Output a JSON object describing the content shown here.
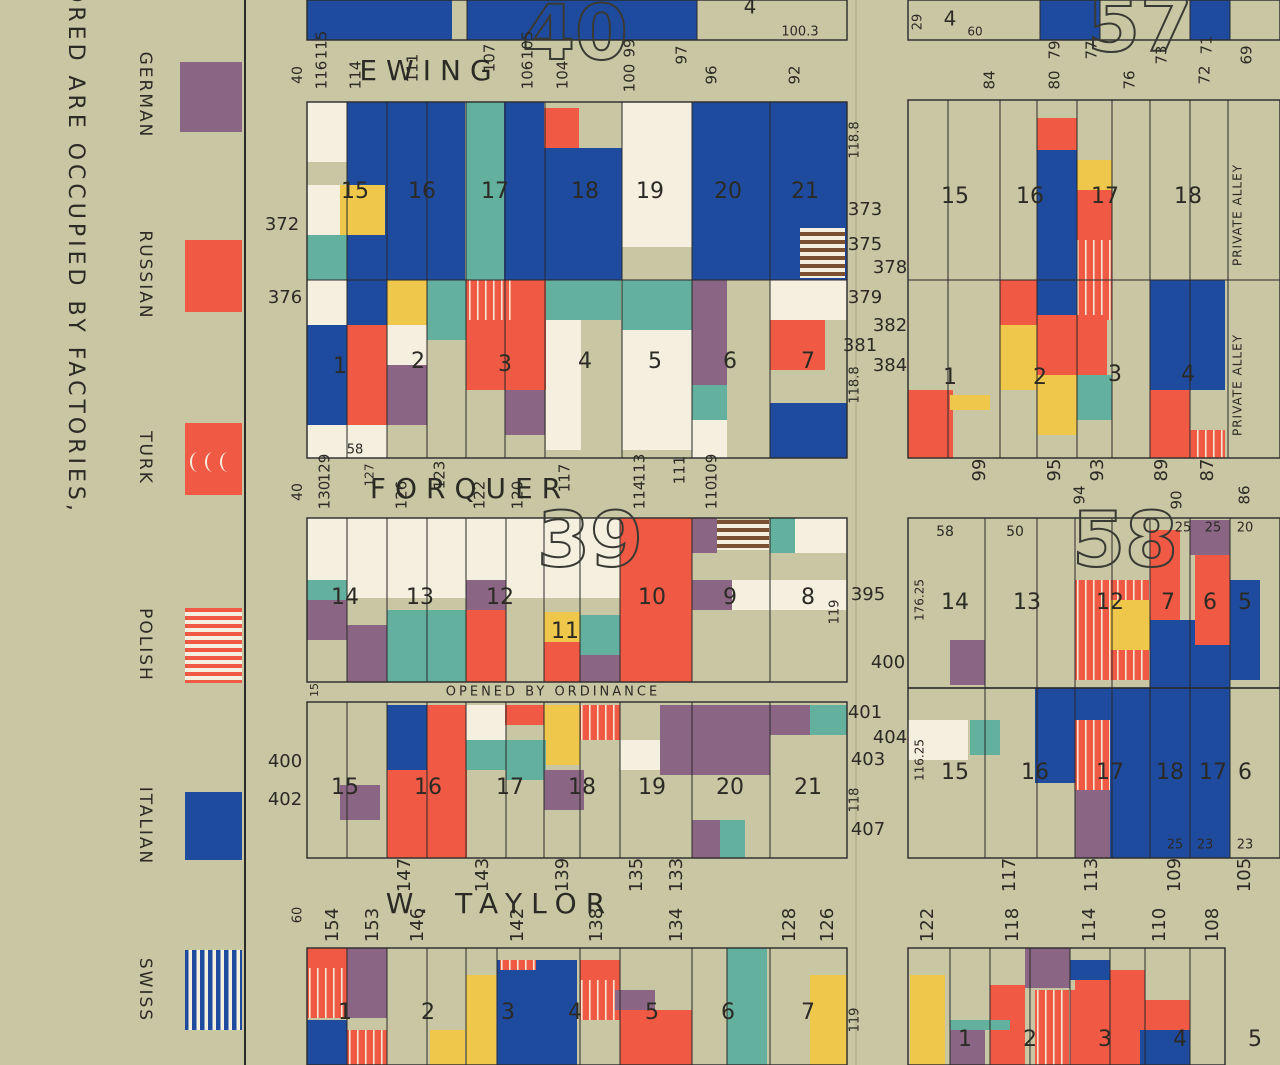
{
  "legend": {
    "items": [
      {
        "label": "GERMAN"
      },
      {
        "label": "RUSSIAN"
      },
      {
        "label": "TURK"
      },
      {
        "label": "POLISH"
      },
      {
        "label": "ITALIAN"
      },
      {
        "label": "SWISS"
      }
    ],
    "note": "LOTS UNCOLORED ARE OCCUPIED BY FACTORIES,"
  },
  "streets": [
    "EWING",
    "FORQUER",
    "W. TAYLOR"
  ],
  "block_numbers": [
    "40",
    "57",
    "39",
    "58"
  ],
  "opening_note": "OPENED BY ORDINANCE",
  "alley_labels": [
    "PRIVATE ALLEY",
    "PRIVATE ALLEY"
  ],
  "lot_labels": [
    "4",
    "100.3",
    "29",
    "4",
    "60",
    "40",
    "116",
    "115",
    "114",
    "111",
    "107",
    "106",
    "105",
    "104",
    "100",
    "99",
    "97",
    "96",
    "92",
    "84",
    "80",
    "79",
    "77",
    "76",
    "73",
    "72",
    "71",
    "69",
    "15",
    "16",
    "17",
    "18",
    "19",
    "20",
    "21",
    "15",
    "16",
    "17",
    "18",
    "1",
    "2",
    "3",
    "4",
    "5",
    "6",
    "7",
    "1",
    "2",
    "3",
    "4",
    "372",
    "376",
    "373",
    "375",
    "378",
    "379",
    "382",
    "381",
    "384",
    "118.8",
    "118.8",
    "58",
    "99",
    "95",
    "93",
    "89",
    "87",
    "40",
    "130",
    "129",
    "127",
    "126",
    "123",
    "122",
    "120",
    "117",
    "114",
    "113",
    "111",
    "110",
    "109",
    "94",
    "90",
    "86",
    "14",
    "13",
    "12",
    "11",
    "10",
    "9",
    "8",
    "395",
    "119",
    "58",
    "50",
    "25",
    "25",
    "20",
    "14",
    "13",
    "12",
    "7",
    "6",
    "5",
    "176.25",
    "400",
    "15",
    "400",
    "402",
    "15",
    "16",
    "17",
    "18",
    "19",
    "20",
    "21",
    "401",
    "403",
    "118",
    "407",
    "404",
    "116.25",
    "15",
    "16",
    "17",
    "18",
    "17",
    "6",
    "25",
    "23",
    "23",
    "147",
    "143",
    "139",
    "135",
    "133",
    "117",
    "113",
    "109",
    "105",
    "60",
    "154",
    "153",
    "146",
    "142",
    "138",
    "134",
    "128",
    "126",
    "122",
    "118",
    "114",
    "110",
    "108",
    "1",
    "2",
    "3",
    "4",
    "5",
    "6",
    "7",
    "119",
    "1",
    "2",
    "3",
    "4",
    "5"
  ]
}
